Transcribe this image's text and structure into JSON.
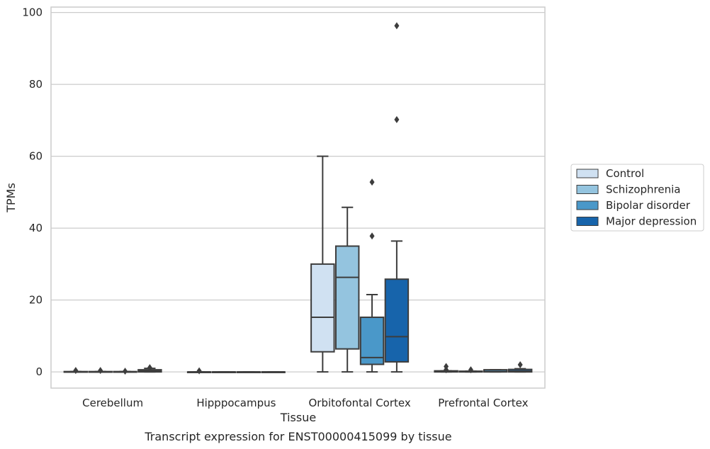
{
  "chart_data": {
    "type": "box",
    "title": "",
    "caption": "Transcript expression for ENST00000415099 by tissue",
    "xlabel": "Tissue",
    "ylabel": "TPMs",
    "ylim": [
      -4.5,
      101.5
    ],
    "yticks": [
      0,
      20,
      40,
      60,
      80,
      100
    ],
    "grid": true,
    "legend_placement": "right",
    "categories": [
      "Cerebellum",
      "Hipppocampus",
      "Orbitofontal Cortex",
      "Prefrontal Cortex"
    ],
    "series": [
      {
        "name": "Control",
        "color": "#d0e1f2",
        "boxes": [
          {
            "whislo": 0,
            "q1": 0,
            "med": 0,
            "q3": 0.1,
            "whishi": 0.1,
            "fliers": [
              0.4
            ]
          },
          {
            "whislo": 0,
            "q1": 0,
            "med": 0,
            "q3": 0,
            "whishi": 0,
            "fliers": [
              0.3
            ]
          },
          {
            "whislo": 0,
            "q1": 5.6,
            "med": 15.2,
            "q3": 30,
            "whishi": 60,
            "fliers": []
          },
          {
            "whislo": 0,
            "q1": 0,
            "med": 0.1,
            "q3": 0.3,
            "whishi": 0.3,
            "fliers": [
              0.6,
              1.5
            ]
          }
        ]
      },
      {
        "name": "Schizophrenia",
        "color": "#94c4df",
        "boxes": [
          {
            "whislo": 0,
            "q1": 0,
            "med": 0,
            "q3": 0.1,
            "whishi": 0.1,
            "fliers": [
              0.4
            ]
          },
          {
            "whislo": 0,
            "q1": 0,
            "med": 0,
            "q3": 0,
            "whishi": 0,
            "fliers": []
          },
          {
            "whislo": 0,
            "q1": 6.4,
            "med": 26.3,
            "q3": 35,
            "whishi": 45.8,
            "fliers": []
          },
          {
            "whislo": 0,
            "q1": 0,
            "med": 0.1,
            "q3": 0.2,
            "whishi": 0.2,
            "fliers": [
              0.6
            ]
          }
        ]
      },
      {
        "name": "Bipolar disorder",
        "color": "#4a98c9",
        "boxes": [
          {
            "whislo": 0,
            "q1": 0,
            "med": 0,
            "q3": 0.1,
            "whishi": 0.1,
            "fliers": [
              0.2
            ]
          },
          {
            "whislo": 0,
            "q1": 0,
            "med": 0,
            "q3": 0,
            "whishi": 0,
            "fliers": []
          },
          {
            "whislo": 0,
            "q1": 2.1,
            "med": 4,
            "q3": 15.2,
            "whishi": 21.5,
            "fliers": [
              37.8,
              52.8
            ]
          },
          {
            "whislo": 0,
            "q1": 0,
            "med": 0.1,
            "q3": 0.6,
            "whishi": 0.6,
            "fliers": []
          }
        ]
      },
      {
        "name": "Major depression",
        "color": "#1764ab",
        "boxes": [
          {
            "whislo": 0,
            "q1": 0,
            "med": 0.3,
            "q3": 0.6,
            "whishi": 1,
            "fliers": [
              1.2
            ]
          },
          {
            "whislo": 0,
            "q1": 0,
            "med": 0,
            "q3": 0,
            "whishi": 0,
            "fliers": []
          },
          {
            "whislo": 0,
            "q1": 2.8,
            "med": 9.8,
            "q3": 25.8,
            "whishi": 36.4,
            "fliers": [
              70.2,
              96.3
            ]
          },
          {
            "whislo": 0,
            "q1": 0,
            "med": 0.2,
            "q3": 0.7,
            "whishi": 0.9,
            "fliers": [
              2
            ]
          }
        ]
      }
    ]
  }
}
